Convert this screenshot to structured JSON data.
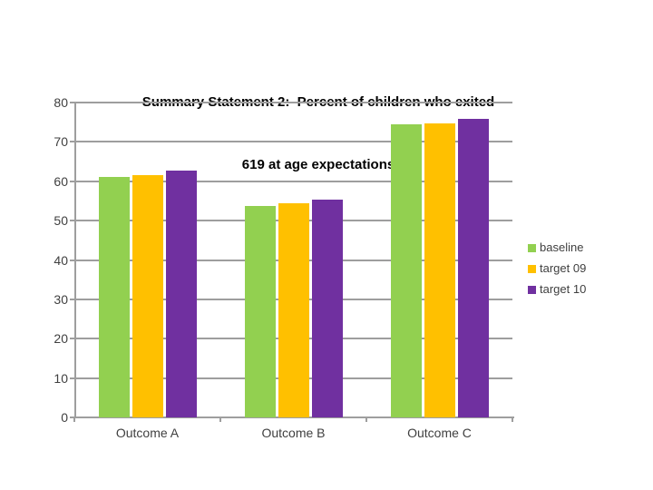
{
  "page": {
    "background_color": "#ffffff"
  },
  "chart_data": {
    "type": "bar",
    "title_line1": "Summary Statement 2:  Percent of children who exited",
    "title_line2": "619 at age expectations",
    "categories": [
      "Outcome A",
      "Outcome B",
      "Outcome C"
    ],
    "series": [
      {
        "name": "baseline",
        "color": "#92D050",
        "values": [
          61.2,
          53.7,
          74.5
        ]
      },
      {
        "name": "target 09",
        "color": "#FFC000",
        "values": [
          61.6,
          54.3,
          74.8
        ]
      },
      {
        "name": "target 10",
        "color": "#7030A0",
        "values": [
          62.7,
          55.4,
          75.9
        ]
      }
    ],
    "ylim": [
      0,
      80
    ],
    "ytick_step": 10,
    "ytick_labels": [
      "0",
      "10",
      "20",
      "30",
      "40",
      "50",
      "60",
      "70",
      "80"
    ],
    "xlabel": "",
    "ylabel": "",
    "grid": true,
    "legend_position": "right",
    "axis_color": "#9e9e9e",
    "label_color": "#3f3f3f",
    "title_color": "#000000"
  }
}
